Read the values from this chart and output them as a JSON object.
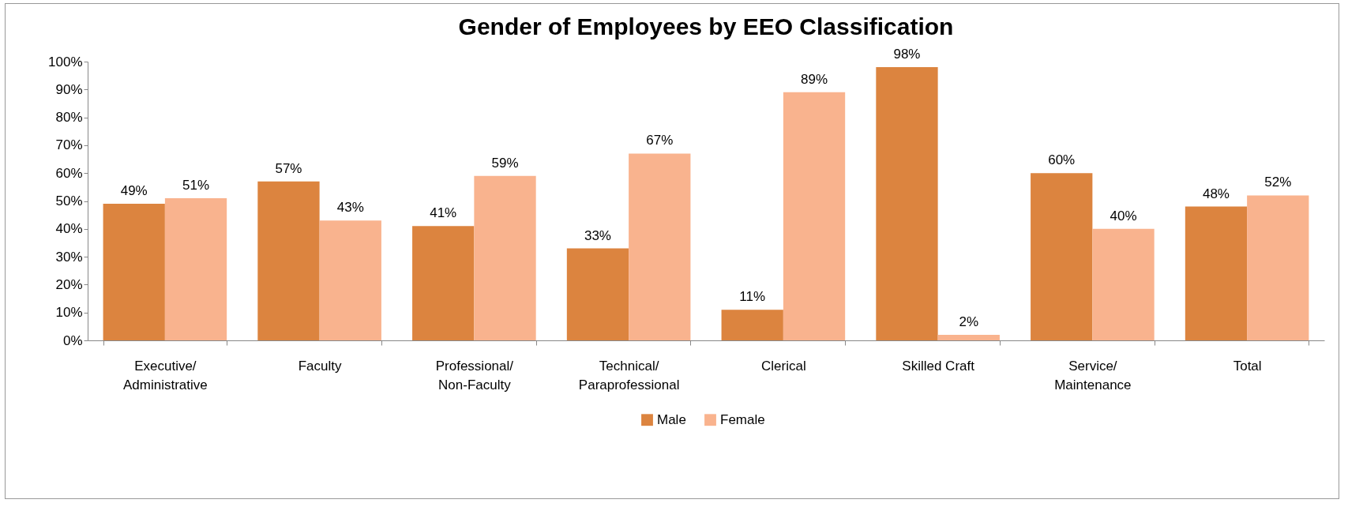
{
  "chart_data": {
    "type": "bar",
    "title": "Gender of Employees by EEO Classification",
    "categories": [
      "Executive/Administrative",
      "Faculty",
      "Professional/Non-Faculty",
      "Technical/Paraprofessional",
      "Clerical",
      "Skilled Craft",
      "Service/Maintenance",
      "Total"
    ],
    "series": [
      {
        "name": "Male",
        "color": "#dc843f",
        "values": [
          49,
          57,
          41,
          33,
          11,
          98,
          60,
          48
        ],
        "value_labels": [
          "49%",
          "57%",
          "41%",
          "33%",
          "11%",
          "98%",
          "60%",
          "48%"
        ]
      },
      {
        "name": "Female",
        "color": "#f9b38e",
        "values": [
          51,
          43,
          59,
          67,
          89,
          2,
          40,
          52
        ],
        "value_labels": [
          "51%",
          "43%",
          "59%",
          "67%",
          "89%",
          "2%",
          "40%",
          "52%"
        ]
      }
    ],
    "ylim": [
      0,
      100
    ],
    "yticks": [
      {
        "value": 0,
        "label": "0%"
      },
      {
        "value": 10,
        "label": "10%"
      },
      {
        "value": 20,
        "label": "20%"
      },
      {
        "value": 30,
        "label": "30%"
      },
      {
        "value": 40,
        "label": "40%"
      },
      {
        "value": 50,
        "label": "50%"
      },
      {
        "value": 60,
        "label": "60%"
      },
      {
        "value": 70,
        "label": "70%"
      },
      {
        "value": 80,
        "label": "80%"
      },
      {
        "value": 90,
        "label": "90%"
      },
      {
        "value": 100,
        "label": "100%"
      }
    ],
    "grid": false,
    "legend": "bottom"
  }
}
